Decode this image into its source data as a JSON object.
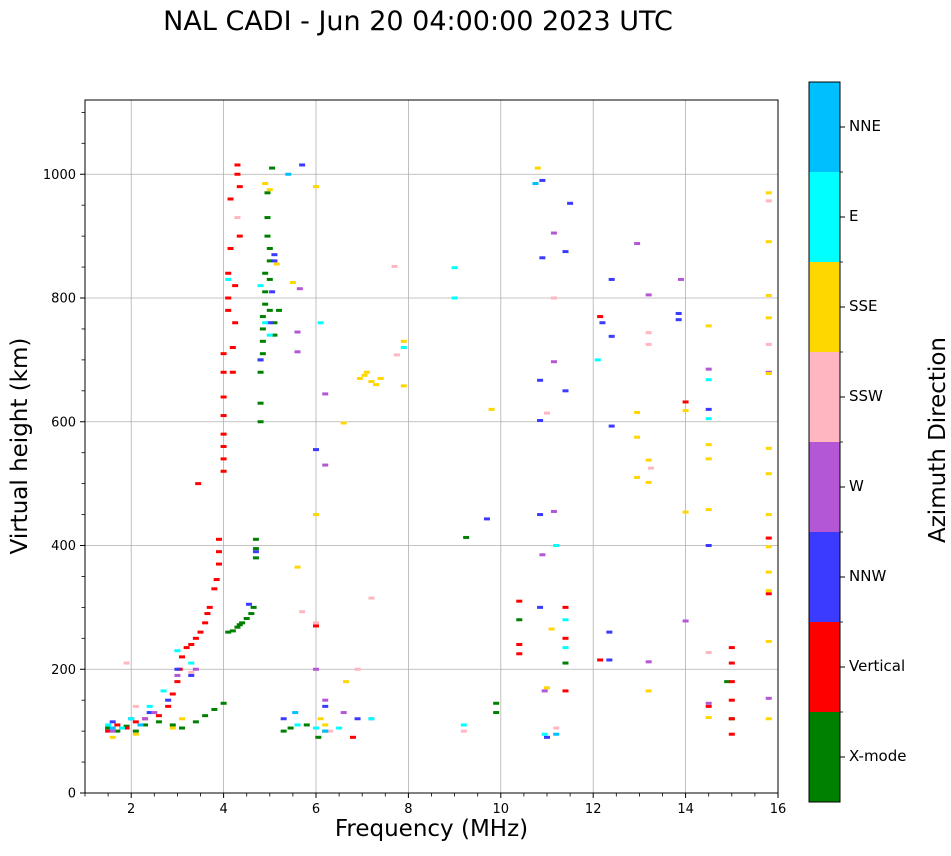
{
  "chart_data": {
    "type": "scatter",
    "title": "NAL CADI - Jun 20 04:00:00 2023 UTC",
    "xlabel": "Frequency (MHz)",
    "ylabel": "Virtual height (km)",
    "xlim": [
      1.0,
      16.0
    ],
    "ylim": [
      0,
      1120
    ],
    "xticks": [
      2,
      4,
      6,
      8,
      10,
      12,
      14,
      16
    ],
    "yticks": [
      0,
      200,
      400,
      600,
      800,
      1000
    ],
    "grid": true,
    "colorbar": {
      "label": "Azimuth Direction",
      "categories": [
        {
          "name": "X-mode",
          "color": "#008000"
        },
        {
          "name": "Vertical",
          "color": "#ff0000"
        },
        {
          "name": "NNW",
          "color": "#3b3bff"
        },
        {
          "name": "W",
          "color": "#b357d6"
        },
        {
          "name": "SSW",
          "color": "#ffb6c1"
        },
        {
          "name": "SSE",
          "color": "#ffd700"
        },
        {
          "name": "E",
          "color": "#00ffff"
        },
        {
          "name": "NNE",
          "color": "#00bfff"
        }
      ]
    },
    "series": [
      {
        "name": "X-mode",
        "points": [
          [
            1.5,
            105
          ],
          [
            1.7,
            100
          ],
          [
            1.9,
            108
          ],
          [
            2.1,
            100
          ],
          [
            2.3,
            110
          ],
          [
            2.6,
            115
          ],
          [
            2.9,
            110
          ],
          [
            3.1,
            105
          ],
          [
            3.4,
            115
          ],
          [
            3.6,
            125
          ],
          [
            3.8,
            135
          ],
          [
            4.0,
            145
          ],
          [
            4.1,
            260
          ],
          [
            4.2,
            262
          ],
          [
            4.3,
            268
          ],
          [
            4.35,
            272
          ],
          [
            4.4,
            275
          ],
          [
            4.5,
            282
          ],
          [
            4.6,
            290
          ],
          [
            4.65,
            300
          ],
          [
            4.7,
            380
          ],
          [
            4.7,
            395
          ],
          [
            4.7,
            410
          ],
          [
            4.8,
            600
          ],
          [
            4.8,
            630
          ],
          [
            4.8,
            680
          ],
          [
            4.8,
            700
          ],
          [
            4.85,
            710
          ],
          [
            4.85,
            730
          ],
          [
            4.85,
            750
          ],
          [
            4.85,
            770
          ],
          [
            4.9,
            790
          ],
          [
            4.9,
            810
          ],
          [
            4.9,
            840
          ],
          [
            4.95,
            900
          ],
          [
            4.95,
            930
          ],
          [
            4.95,
            970
          ],
          [
            5.0,
            780
          ],
          [
            5.0,
            830
          ],
          [
            5.0,
            860
          ],
          [
            5.0,
            880
          ],
          [
            5.05,
            1010
          ],
          [
            5.1,
            740
          ],
          [
            5.1,
            760
          ],
          [
            5.2,
            780
          ],
          [
            5.3,
            100
          ],
          [
            5.45,
            105
          ],
          [
            5.8,
            110
          ],
          [
            6.05,
            90
          ],
          [
            6.2,
            100
          ],
          [
            9.25,
            413
          ],
          [
            9.9,
            130
          ],
          [
            9.9,
            145
          ],
          [
            10.4,
            280
          ],
          [
            11.4,
            210
          ],
          [
            14.9,
            180
          ],
          [
            15.0,
            120
          ]
        ]
      },
      {
        "name": "Vertical",
        "points": [
          [
            1.5,
            100
          ],
          [
            1.7,
            110
          ],
          [
            1.9,
            105
          ],
          [
            2.1,
            115
          ],
          [
            2.3,
            120
          ],
          [
            2.6,
            125
          ],
          [
            2.8,
            140
          ],
          [
            2.9,
            160
          ],
          [
            3.0,
            180
          ],
          [
            3.05,
            200
          ],
          [
            3.1,
            220
          ],
          [
            3.2,
            235
          ],
          [
            3.3,
            240
          ],
          [
            3.4,
            250
          ],
          [
            3.5,
            260
          ],
          [
            3.6,
            275
          ],
          [
            3.65,
            290
          ],
          [
            3.7,
            300
          ],
          [
            3.8,
            330
          ],
          [
            3.85,
            345
          ],
          [
            3.9,
            370
          ],
          [
            3.9,
            390
          ],
          [
            3.9,
            410
          ],
          [
            3.45,
            500
          ],
          [
            4.0,
            520
          ],
          [
            4.0,
            540
          ],
          [
            4.0,
            560
          ],
          [
            4.0,
            580
          ],
          [
            4.0,
            610
          ],
          [
            4.0,
            640
          ],
          [
            4.0,
            680
          ],
          [
            4.0,
            710
          ],
          [
            4.1,
            780
          ],
          [
            4.1,
            800
          ],
          [
            4.1,
            840
          ],
          [
            4.15,
            880
          ],
          [
            4.15,
            960
          ],
          [
            4.2,
            680
          ],
          [
            4.2,
            720
          ],
          [
            4.25,
            760
          ],
          [
            4.25,
            820
          ],
          [
            4.3,
            1000
          ],
          [
            4.3,
            1015
          ],
          [
            4.35,
            900
          ],
          [
            4.35,
            980
          ],
          [
            6.0,
            270
          ],
          [
            6.8,
            90
          ],
          [
            10.4,
            310
          ],
          [
            10.4,
            240
          ],
          [
            10.4,
            225
          ],
          [
            11.4,
            300
          ],
          [
            11.4,
            250
          ],
          [
            11.4,
            165
          ],
          [
            12.15,
            215
          ],
          [
            12.15,
            770
          ],
          [
            14.0,
            632
          ],
          [
            14.5,
            140
          ],
          [
            15.0,
            235
          ],
          [
            15.0,
            210
          ],
          [
            15.0,
            180
          ],
          [
            15.0,
            150
          ],
          [
            15.0,
            120
          ],
          [
            15.0,
            95
          ],
          [
            15.8,
            412
          ],
          [
            15.8,
            322
          ]
        ]
      },
      {
        "name": "NNW",
        "points": [
          [
            1.6,
            115
          ],
          [
            2.0,
            120
          ],
          [
            2.4,
            130
          ],
          [
            2.8,
            150
          ],
          [
            3.0,
            200
          ],
          [
            3.3,
            190
          ],
          [
            4.55,
            305
          ],
          [
            4.7,
            390
          ],
          [
            4.8,
            700
          ],
          [
            5.0,
            760
          ],
          [
            5.05,
            810
          ],
          [
            5.1,
            860
          ],
          [
            5.1,
            870
          ],
          [
            5.3,
            120
          ],
          [
            5.7,
            1015
          ],
          [
            6.0,
            555
          ],
          [
            6.2,
            140
          ],
          [
            6.9,
            120
          ],
          [
            9.7,
            443
          ],
          [
            10.85,
            300
          ],
          [
            10.85,
            450
          ],
          [
            10.85,
            667
          ],
          [
            10.85,
            602
          ],
          [
            10.9,
            865
          ],
          [
            10.9,
            990
          ],
          [
            11.0,
            90
          ],
          [
            11.4,
            875
          ],
          [
            11.4,
            650
          ],
          [
            11.5,
            953
          ],
          [
            12.2,
            760
          ],
          [
            12.35,
            260
          ],
          [
            12.35,
            215
          ],
          [
            12.4,
            593
          ],
          [
            12.4,
            738
          ],
          [
            12.4,
            830
          ],
          [
            13.85,
            765
          ],
          [
            13.85,
            775
          ],
          [
            14.5,
            400
          ],
          [
            14.5,
            620
          ]
        ]
      },
      {
        "name": "W",
        "points": [
          [
            1.6,
            100
          ],
          [
            2.3,
            120
          ],
          [
            2.5,
            130
          ],
          [
            3.0,
            190
          ],
          [
            3.4,
            200
          ],
          [
            5.6,
            713
          ],
          [
            5.6,
            745
          ],
          [
            5.65,
            815
          ],
          [
            6.0,
            200
          ],
          [
            6.2,
            530
          ],
          [
            6.2,
            645
          ],
          [
            6.2,
            150
          ],
          [
            6.6,
            130
          ],
          [
            7.2,
            120
          ],
          [
            10.9,
            385
          ],
          [
            10.95,
            165
          ],
          [
            11.15,
            905
          ],
          [
            11.15,
            697
          ],
          [
            11.15,
            455
          ],
          [
            12.95,
            888
          ],
          [
            13.2,
            212
          ],
          [
            13.2,
            805
          ],
          [
            13.9,
            830
          ],
          [
            14.0,
            278
          ],
          [
            14.5,
            685
          ],
          [
            14.5,
            145
          ],
          [
            15.8,
            680
          ],
          [
            15.8,
            153
          ]
        ]
      },
      {
        "name": "SSW",
        "points": [
          [
            1.9,
            210
          ],
          [
            2.1,
            140
          ],
          [
            3.3,
            195
          ],
          [
            4.3,
            930
          ],
          [
            5.7,
            293
          ],
          [
            6.0,
            275
          ],
          [
            6.3,
            100
          ],
          [
            6.9,
            200
          ],
          [
            7.2,
            315
          ],
          [
            7.7,
            851
          ],
          [
            7.75,
            708
          ],
          [
            9.2,
            100
          ],
          [
            11.0,
            614
          ],
          [
            11.15,
            800
          ],
          [
            11.2,
            105
          ],
          [
            13.2,
            744
          ],
          [
            13.2,
            725
          ],
          [
            13.25,
            525
          ],
          [
            14.5,
            227
          ],
          [
            15.8,
            957
          ],
          [
            15.8,
            725
          ]
        ]
      },
      {
        "name": "SSE",
        "points": [
          [
            1.6,
            90
          ],
          [
            2.1,
            95
          ],
          [
            2.9,
            105
          ],
          [
            3.1,
            120
          ],
          [
            4.9,
            985
          ],
          [
            5.0,
            975
          ],
          [
            5.15,
            855
          ],
          [
            5.5,
            825
          ],
          [
            5.6,
            365
          ],
          [
            6.0,
            980
          ],
          [
            6.0,
            450
          ],
          [
            6.1,
            120
          ],
          [
            6.2,
            110
          ],
          [
            6.6,
            598
          ],
          [
            6.65,
            180
          ],
          [
            6.95,
            670
          ],
          [
            7.05,
            675
          ],
          [
            7.1,
            680
          ],
          [
            7.2,
            665
          ],
          [
            7.3,
            660
          ],
          [
            7.4,
            670
          ],
          [
            7.9,
            658
          ],
          [
            7.9,
            730
          ],
          [
            9.8,
            620
          ],
          [
            10.8,
            1010
          ],
          [
            11.0,
            170
          ],
          [
            11.1,
            265
          ],
          [
            12.95,
            615
          ],
          [
            12.95,
            575
          ],
          [
            12.95,
            510
          ],
          [
            13.2,
            538
          ],
          [
            13.2,
            502
          ],
          [
            13.2,
            165
          ],
          [
            14.0,
            454
          ],
          [
            14.0,
            618
          ],
          [
            14.5,
            755
          ],
          [
            14.5,
            563
          ],
          [
            14.5,
            540
          ],
          [
            14.5,
            458
          ],
          [
            14.5,
            122
          ],
          [
            15.8,
            970
          ],
          [
            15.8,
            891
          ],
          [
            15.8,
            804
          ],
          [
            15.8,
            768
          ],
          [
            15.8,
            678
          ],
          [
            15.8,
            557
          ],
          [
            15.8,
            516
          ],
          [
            15.8,
            450
          ],
          [
            15.8,
            398
          ],
          [
            15.8,
            357
          ],
          [
            15.8,
            327
          ],
          [
            15.8,
            245
          ],
          [
            15.8,
            120
          ]
        ]
      },
      {
        "name": "E",
        "points": [
          [
            1.5,
            110
          ],
          [
            1.8,
            105
          ],
          [
            2.0,
            120
          ],
          [
            2.4,
            140
          ],
          [
            2.7,
            165
          ],
          [
            3.0,
            230
          ],
          [
            3.3,
            210
          ],
          [
            4.1,
            830
          ],
          [
            4.8,
            820
          ],
          [
            4.9,
            760
          ],
          [
            5.0,
            740
          ],
          [
            5.6,
            110
          ],
          [
            6.0,
            105
          ],
          [
            6.1,
            760
          ],
          [
            6.5,
            105
          ],
          [
            7.2,
            120
          ],
          [
            7.9,
            720
          ],
          [
            9.0,
            849
          ],
          [
            9.0,
            800
          ],
          [
            9.2,
            110
          ],
          [
            10.95,
            95
          ],
          [
            11.2,
            400
          ],
          [
            11.4,
            280
          ],
          [
            11.4,
            235
          ],
          [
            12.1,
            700
          ],
          [
            14.5,
            668
          ],
          [
            14.5,
            605
          ]
        ]
      },
      {
        "name": "NNE",
        "points": [
          [
            1.6,
            105
          ],
          [
            2.2,
            110
          ],
          [
            5.4,
            1000
          ],
          [
            5.55,
            130
          ],
          [
            6.2,
            100
          ],
          [
            10.75,
            985
          ],
          [
            11.2,
            95
          ]
        ]
      }
    ]
  }
}
